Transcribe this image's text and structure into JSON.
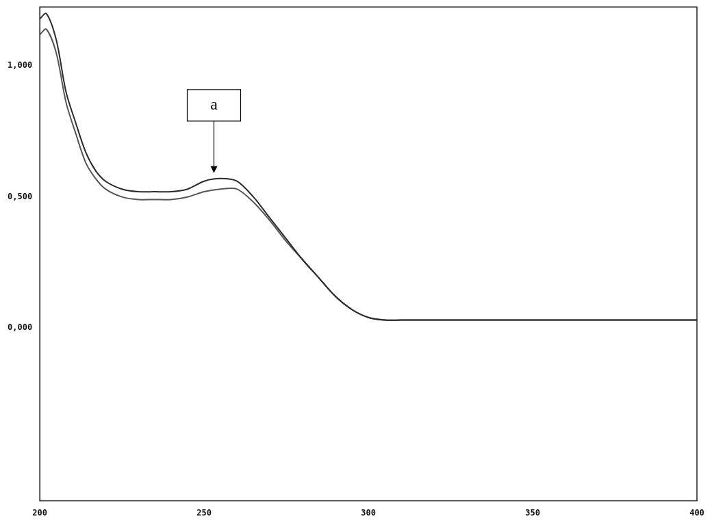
{
  "chart_data": {
    "type": "line",
    "x": [
      200,
      202,
      205,
      208,
      211,
      214,
      217,
      220,
      225,
      230,
      235,
      240,
      245,
      250,
      255,
      260,
      265,
      270,
      275,
      280,
      285,
      290,
      295,
      300,
      305,
      310,
      320,
      340,
      360,
      380,
      400
    ],
    "series": [
      {
        "color": "#2a2a2a",
        "values": [
          1.18,
          1.2,
          1.1,
          0.9,
          0.78,
          0.67,
          0.6,
          0.56,
          0.53,
          0.52,
          0.52,
          0.52,
          0.53,
          0.56,
          0.57,
          0.56,
          0.5,
          0.42,
          0.34,
          0.26,
          0.19,
          0.12,
          0.07,
          0.04,
          0.03,
          0.03,
          0.03,
          0.03,
          0.03,
          0.03,
          0.03
        ]
      },
      {
        "color": "#555555",
        "values": [
          1.12,
          1.14,
          1.05,
          0.86,
          0.74,
          0.63,
          0.57,
          0.53,
          0.5,
          0.49,
          0.49,
          0.49,
          0.5,
          0.52,
          0.53,
          0.53,
          0.48,
          0.41,
          0.33,
          0.26,
          0.19,
          0.12,
          0.07,
          0.04,
          0.03,
          0.03,
          0.03,
          0.03,
          0.03,
          0.03,
          0.03
        ]
      }
    ],
    "xlim": [
      200,
      400
    ],
    "xticks": [
      200,
      250,
      300,
      350,
      400
    ],
    "ylim": [
      -0.66,
      1.225
    ],
    "yticks": [
      {
        "value": 0,
        "label": "0,000"
      },
      {
        "value": 0.5,
        "label": "0,500"
      },
      {
        "value": 1,
        "label": "1,000"
      }
    ],
    "annotations": [
      {
        "text": "a",
        "x": 253,
        "y": 0.57
      }
    ],
    "grid": false
  }
}
